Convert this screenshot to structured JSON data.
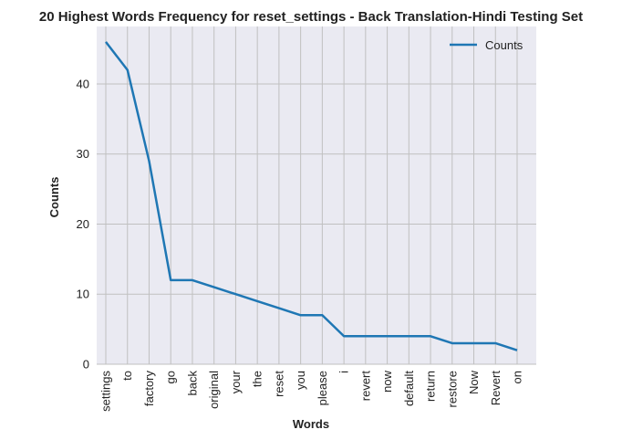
{
  "chart_data": {
    "type": "line",
    "title": "20 Highest Words Frequency for reset_settings - Back Translation-Hindi Testing Set",
    "xlabel": "Words",
    "ylabel": "Counts",
    "categories": [
      "settings",
      "to",
      "factory",
      "go",
      "back",
      "original",
      "your",
      "the",
      "reset",
      "you",
      "please",
      "i",
      "revert",
      "now",
      "default",
      "return",
      "restore",
      "Now",
      "Revert",
      "on"
    ],
    "series": [
      {
        "name": "Counts",
        "values": [
          46,
          42,
          29,
          12,
          12,
          11,
          10,
          9,
          8,
          7,
          7,
          4,
          4,
          4,
          4,
          4,
          3,
          3,
          3,
          2
        ]
      }
    ],
    "ylim": [
      0,
      48.2
    ],
    "yticks": [
      0,
      10,
      20,
      30,
      40
    ],
    "grid": true,
    "legend_position": "top-right",
    "colors": {
      "line": "#1f77b4",
      "plot_bg": "#eaeaf2",
      "grid": "#c0c0c0"
    }
  }
}
